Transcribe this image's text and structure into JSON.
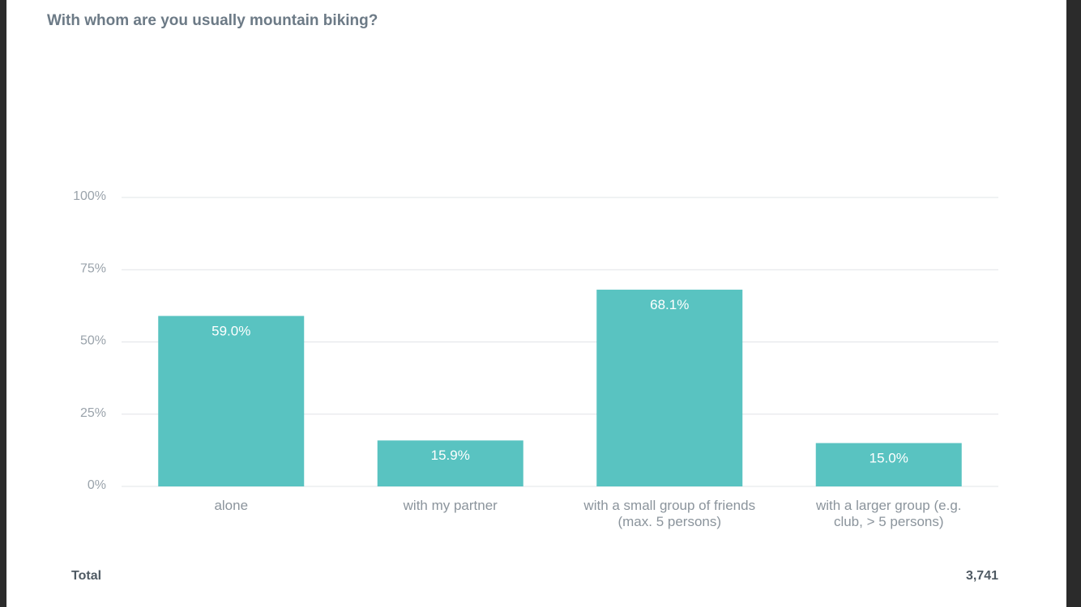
{
  "title": "With whom are you usually mountain biking?",
  "total": {
    "label": "Total",
    "value": "3,741"
  },
  "colors": {
    "bar": "#59c3c1",
    "grid": "#e1e4e7",
    "page_background": "#ffffff",
    "outer_background": "#2b2b2b"
  },
  "chart_data": {
    "type": "bar",
    "categories": [
      [
        "alone"
      ],
      [
        "with my partner"
      ],
      [
        "with a small group of friends",
        "(max. 5 persons)"
      ],
      [
        "with a larger group (e.g.",
        "club, > 5 persons)"
      ]
    ],
    "values": [
      59.0,
      15.9,
      68.1,
      15.0
    ],
    "data_labels": [
      "59.0%",
      "15.9%",
      "68.1%",
      "15.0%"
    ],
    "ylim": [
      0,
      100
    ],
    "yticks": [
      0,
      25,
      50,
      75,
      100
    ],
    "ytick_labels": [
      "0%",
      "25%",
      "50%",
      "75%",
      "100%"
    ],
    "grid": true,
    "legend": "none"
  }
}
